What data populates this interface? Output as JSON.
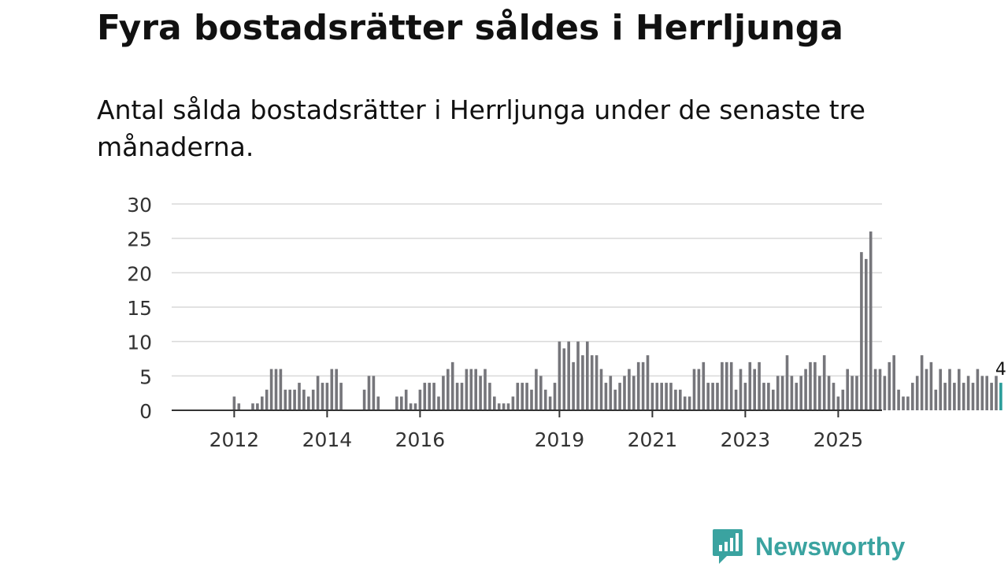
{
  "chart_data": {
    "type": "bar",
    "title": "Fyra bostadsrätter såldes i Herrljunga",
    "subtitle": "Antal sålda bostadsrätter i Herrljunga under de senaste tre månaderna.",
    "xlabel": "",
    "ylabel": "",
    "ylim": [
      0,
      30
    ],
    "yticks": [
      "0",
      "5",
      "10",
      "15",
      "20",
      "25",
      "30"
    ],
    "xticks": [
      {
        "label": "2012",
        "index": 6
      },
      {
        "label": "2014",
        "index": 26
      },
      {
        "label": "2016",
        "index": 46
      },
      {
        "label": "2019",
        "index": 76
      },
      {
        "label": "2021",
        "index": 96
      },
      {
        "label": "2023",
        "index": 116
      },
      {
        "label": "2025",
        "index": 136
      }
    ],
    "series": [
      {
        "name": "Antal sålda bostadsrätter",
        "values": [
          0,
          0,
          0,
          0,
          0,
          0,
          2,
          1,
          0,
          0,
          1,
          1,
          2,
          3,
          6,
          6,
          6,
          3,
          3,
          3,
          4,
          3,
          2,
          3,
          5,
          4,
          4,
          6,
          6,
          4,
          0,
          0,
          0,
          0,
          3,
          5,
          5,
          2,
          0,
          0,
          0,
          2,
          2,
          3,
          1,
          1,
          3,
          4,
          4,
          4,
          2,
          5,
          6,
          7,
          4,
          4,
          6,
          6,
          6,
          5,
          6,
          4,
          2,
          1,
          1,
          1,
          2,
          4,
          4,
          4,
          3,
          6,
          5,
          3,
          2,
          4,
          10,
          9,
          10,
          7,
          10,
          8,
          10,
          8,
          8,
          6,
          4,
          5,
          3,
          4,
          5,
          6,
          5,
          7,
          7,
          8,
          4,
          4,
          4,
          4,
          4,
          3,
          3,
          2,
          2,
          6,
          6,
          7,
          4,
          4,
          4,
          7,
          7,
          7,
          3,
          6,
          4,
          7,
          6,
          7,
          4,
          4,
          3,
          5,
          5,
          8,
          5,
          4,
          5,
          6,
          7,
          7,
          5,
          8,
          5,
          4,
          2,
          3,
          6,
          5,
          5,
          23,
          22,
          26,
          6,
          6,
          5,
          7,
          8,
          3,
          2,
          2,
          4,
          5,
          8,
          6,
          7,
          3,
          6,
          4,
          6,
          4,
          6,
          4,
          5,
          4,
          6,
          5,
          5,
          4,
          5,
          4
        ]
      }
    ],
    "highlight_color": "#2a9d9a",
    "bar_color": "#76767b",
    "last_value_label": "4",
    "legend": "none"
  },
  "brand": {
    "name": "Newsworthy",
    "icon": "newsworthy-logo-icon",
    "color": "#3aa3a0"
  }
}
